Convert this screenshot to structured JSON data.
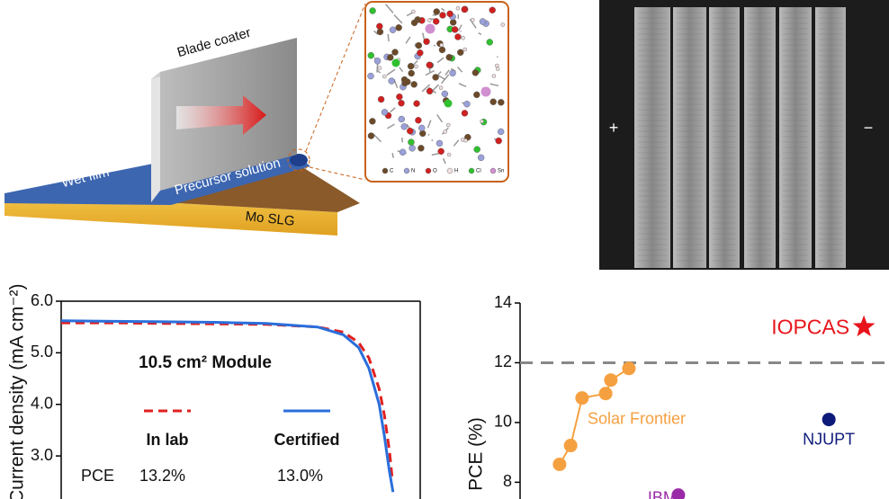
{
  "diagram": {
    "blade_label": "Blade coater",
    "film_label": "Wet film",
    "solution_label": "Precursor solution",
    "substrate_label": "Mo SLG",
    "atom_legend": [
      "C",
      "N",
      "O",
      "H",
      "Cl",
      "Sn"
    ]
  },
  "photo": {
    "plus": "+",
    "minus": "−"
  },
  "chart_data": [
    {
      "type": "line",
      "ylabel": "Current density (mA cm⁻²)",
      "annotation": "10.5 cm² Module",
      "ylim": [
        2.2,
        6.0
      ],
      "xlim": [
        0,
        7
      ],
      "yticks": [
        {
          "value": 6,
          "label": "6.0"
        },
        {
          "value": 5,
          "label": "5.0"
        },
        {
          "value": 4,
          "label": "4.0"
        },
        {
          "value": 3,
          "label": "3.0"
        }
      ],
      "series": [
        {
          "name": "In lab",
          "color": "#e02020",
          "dashed": true,
          "x": [
            0,
            1,
            2,
            3,
            4,
            5,
            5.5,
            5.8,
            6.0,
            6.2,
            6.3,
            6.4,
            6.45
          ],
          "values": [
            5.58,
            5.58,
            5.57,
            5.56,
            5.55,
            5.5,
            5.4,
            5.2,
            4.9,
            4.3,
            3.8,
            3.1,
            2.6
          ]
        },
        {
          "name": "Certified",
          "color": "#2a6fdb",
          "dashed": false,
          "x": [
            0,
            1,
            2,
            3,
            4,
            5,
            5.5,
            5.8,
            6.0,
            6.2,
            6.3,
            6.4,
            6.47
          ],
          "values": [
            5.62,
            5.61,
            5.6,
            5.59,
            5.57,
            5.5,
            5.35,
            5.1,
            4.7,
            4.0,
            3.4,
            2.7,
            2.3
          ]
        }
      ],
      "table_rows": [
        [
          "PCE",
          "13.2%",
          "13.0%"
        ]
      ]
    },
    {
      "type": "scatter",
      "ylabel": "PCE (%)",
      "ylim": [
        7.5,
        14
      ],
      "xlim": [
        0,
        100
      ],
      "yticks": [
        14,
        12,
        10,
        8
      ],
      "reference_line": 12,
      "series": [
        {
          "name": "Solar Frontier",
          "color": "#f5a040",
          "line": true,
          "x": [
            10.7,
            13.7,
            16.8,
            23.2,
            24.6,
            29.5
          ],
          "values": [
            8.6,
            9.23,
            10.82,
            10.97,
            11.42,
            11.81
          ]
        },
        {
          "name": "IBM",
          "color": "#9a2aa8",
          "x": [
            42.9
          ],
          "values": [
            7.57
          ]
        },
        {
          "name": "NJUPT",
          "color": "#0d1a7a",
          "x": [
            83.7
          ],
          "values": [
            10.1
          ]
        },
        {
          "name": "IOPCAS",
          "color": "#e8141c",
          "marker": "star",
          "x": [
            93.2
          ],
          "values": [
            13.2
          ]
        }
      ]
    }
  ]
}
